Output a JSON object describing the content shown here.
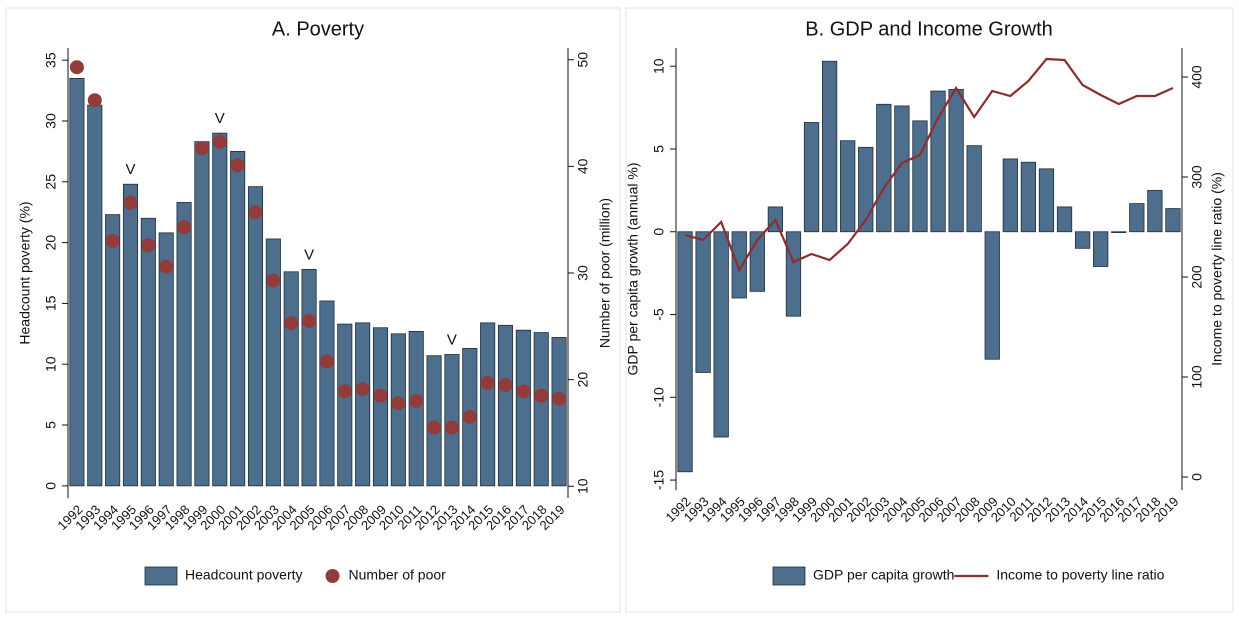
{
  "chart_data": [
    {
      "type": "bar",
      "title": "A. Poverty",
      "ylabel": "Headcount poverty (%)",
      "y2label": "Number of poor (million)",
      "categories": [
        "1992",
        "1993",
        "1994",
        "1995",
        "1996",
        "1997",
        "1998",
        "1999",
        "2000",
        "2001",
        "2002",
        "2003",
        "2004",
        "2005",
        "2006",
        "2007",
        "2008",
        "2009",
        "2010",
        "2011",
        "2012",
        "2013",
        "2014",
        "2015",
        "2016",
        "2017",
        "2018",
        "2019"
      ],
      "series": [
        {
          "name": "Headcount poverty",
          "type": "bar",
          "color": "#4e6e8e",
          "values": [
            33.5,
            31.3,
            22.3,
            24.8,
            22.0,
            20.8,
            23.3,
            28.3,
            29.0,
            27.5,
            24.6,
            20.3,
            17.6,
            17.8,
            15.2,
            13.3,
            13.4,
            13.0,
            12.5,
            12.7,
            10.7,
            10.8,
            11.3,
            13.4,
            13.2,
            12.8,
            12.6,
            12.2
          ]
        },
        {
          "name": "Number of poor",
          "type": "scatter",
          "axis": "y2",
          "color": "#913b3b",
          "values": [
            49.3,
            46.2,
            33.0,
            36.6,
            32.6,
            30.6,
            34.3,
            41.7,
            42.3,
            40.1,
            35.7,
            29.3,
            25.3,
            25.5,
            21.7,
            18.9,
            19.1,
            18.5,
            17.8,
            18.0,
            15.5,
            15.5,
            16.5,
            19.7,
            19.5,
            18.9,
            18.5,
            18.2
          ]
        }
      ],
      "annotations": [
        {
          "text": "V",
          "x": "1995"
        },
        {
          "text": "V",
          "x": "2000"
        },
        {
          "text": "V",
          "x": "2005"
        },
        {
          "text": "V",
          "x": "2013"
        }
      ],
      "ylim": [
        -1,
        36
      ],
      "yticks": [
        0,
        5,
        10,
        15,
        20,
        25,
        30,
        35
      ],
      "y2lim": [
        8.9,
        51.1
      ],
      "y2ticks": [
        10,
        20,
        30,
        40,
        50
      ],
      "grid": false,
      "legend": "bottom"
    },
    {
      "type": "bar",
      "title": "B. GDP and Income Growth",
      "ylabel": "GDP per capita growth (annual %)",
      "y2label": "Income to poverty line ratio (%)",
      "categories": [
        "1992",
        "1993",
        "1994",
        "1995",
        "1996",
        "1997",
        "1998",
        "1999",
        "2000",
        "2001",
        "2002",
        "2003",
        "2004",
        "2005",
        "2006",
        "2007",
        "2008",
        "2009",
        "2010",
        "2011",
        "2012",
        "2013",
        "2014",
        "2015",
        "2016",
        "2017",
        "2018",
        "2019"
      ],
      "series": [
        {
          "name": "GDP per capita growth",
          "type": "bar",
          "color": "#4e6e8e",
          "values": [
            -14.5,
            -8.5,
            -12.4,
            -4.0,
            -3.6,
            1.5,
            -5.1,
            6.6,
            10.3,
            5.5,
            5.1,
            7.7,
            7.6,
            6.7,
            8.5,
            8.6,
            5.2,
            -7.7,
            4.4,
            4.2,
            3.8,
            1.5,
            -1.0,
            -2.1,
            0.0,
            1.7,
            2.5,
            1.4
          ]
        },
        {
          "name": "Income to poverty line ratio",
          "type": "line",
          "axis": "y2",
          "color": "#8b2e2e",
          "values": [
            242,
            237,
            255,
            207,
            237,
            257,
            215,
            223,
            217,
            233,
            257,
            289,
            314,
            322,
            359,
            389,
            360,
            386,
            381,
            396,
            418,
            417,
            392,
            382,
            373,
            381,
            381,
            389
          ]
        }
      ],
      "ylim": [
        -15.6,
        11.1
      ],
      "yticks": [
        -15,
        -10,
        -5,
        0,
        5,
        10
      ],
      "y2lim": [
        -13,
        429
      ],
      "y2ticks": [
        0,
        100,
        200,
        300,
        400
      ],
      "grid": false,
      "legend": "bottom"
    }
  ]
}
